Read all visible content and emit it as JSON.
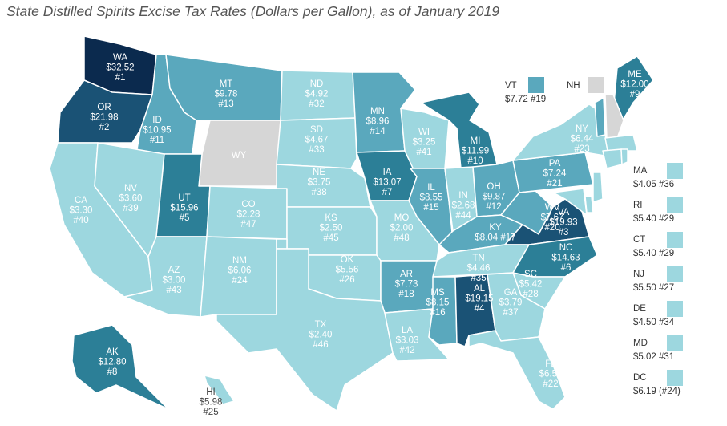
{
  "title": "State Distilled Spirits Excise Tax Rates (Dollars per Gallon), as of January 2019",
  "colors": {
    "tier1": "#0b2a4e",
    "tier2": "#1a5275",
    "tier3": "#2c7f97",
    "tier4": "#5aa8bd",
    "tier5": "#9dd7df",
    "none": "#d6d6d6",
    "border": "#ffffff"
  },
  "states": [
    {
      "code": "WA",
      "value": "$32.52",
      "rank": "#1",
      "tier": "tier1"
    },
    {
      "code": "OR",
      "value": "$21.98",
      "rank": "#2",
      "tier": "tier2"
    },
    {
      "code": "ID",
      "value": "$10.95",
      "rank": "#11",
      "tier": "tier4"
    },
    {
      "code": "MT",
      "value": "$9.78",
      "rank": "#13",
      "tier": "tier4"
    },
    {
      "code": "WY",
      "value": "",
      "rank": "",
      "tier": "none"
    },
    {
      "code": "ND",
      "value": "$4.92",
      "rank": "#32",
      "tier": "tier5"
    },
    {
      "code": "SD",
      "value": "$4.67",
      "rank": "#33",
      "tier": "tier5"
    },
    {
      "code": "MN",
      "value": "$8.96",
      "rank": "#14",
      "tier": "tier4"
    },
    {
      "code": "WI",
      "value": "$3.25",
      "rank": "#41",
      "tier": "tier5"
    },
    {
      "code": "MI",
      "value": "$11.99",
      "rank": "#10",
      "tier": "tier3"
    },
    {
      "code": "NV",
      "value": "$3.60",
      "rank": "#39",
      "tier": "tier5"
    },
    {
      "code": "CA",
      "value": "$3.30",
      "rank": "#40",
      "tier": "tier5"
    },
    {
      "code": "UT",
      "value": "$15.96",
      "rank": "#5",
      "tier": "tier3"
    },
    {
      "code": "CO",
      "value": "$2.28",
      "rank": "#47",
      "tier": "tier5"
    },
    {
      "code": "NE",
      "value": "$3.75",
      "rank": "#38",
      "tier": "tier5"
    },
    {
      "code": "IA",
      "value": "$13.07",
      "rank": "#7",
      "tier": "tier3"
    },
    {
      "code": "IL",
      "value": "$8.55",
      "rank": "#15",
      "tier": "tier4"
    },
    {
      "code": "IN",
      "value": "$2.68",
      "rank": "#44",
      "tier": "tier5"
    },
    {
      "code": "OH",
      "value": "$9.87",
      "rank": "#12",
      "tier": "tier4"
    },
    {
      "code": "PA",
      "value": "$7.24",
      "rank": "#21",
      "tier": "tier4"
    },
    {
      "code": "NY",
      "value": "$6.44",
      "rank": "#23",
      "tier": "tier5"
    },
    {
      "code": "KS",
      "value": "$2.50",
      "rank": "#45",
      "tier": "tier5"
    },
    {
      "code": "MO",
      "value": "$2.00",
      "rank": "#48",
      "tier": "tier5"
    },
    {
      "code": "KY",
      "value": "$8.04",
      "rank": "#17",
      "tier": "tier4"
    },
    {
      "code": "WV",
      "value": "$7.67",
      "rank": "#20",
      "tier": "tier4"
    },
    {
      "code": "VA",
      "value": "$19.93",
      "rank": "#3",
      "tier": "tier2"
    },
    {
      "code": "AZ",
      "value": "$3.00",
      "rank": "#43",
      "tier": "tier5"
    },
    {
      "code": "NM",
      "value": "$6.06",
      "rank": "#24",
      "tier": "tier5"
    },
    {
      "code": "OK",
      "value": "$5.56",
      "rank": "#26",
      "tier": "tier5"
    },
    {
      "code": "AR",
      "value": "$7.73",
      "rank": "#18",
      "tier": "tier4"
    },
    {
      "code": "TN",
      "value": "$4.46",
      "rank": "#35",
      "tier": "tier5"
    },
    {
      "code": "NC",
      "value": "$14.63",
      "rank": "#6",
      "tier": "tier3"
    },
    {
      "code": "SC",
      "value": "$5.42",
      "rank": "#28",
      "tier": "tier5"
    },
    {
      "code": "TX",
      "value": "$2.40",
      "rank": "#46",
      "tier": "tier5"
    },
    {
      "code": "LA",
      "value": "$3.03",
      "rank": "#42",
      "tier": "tier5"
    },
    {
      "code": "MS",
      "value": "$8.15",
      "rank": "#16",
      "tier": "tier4"
    },
    {
      "code": "AL",
      "value": "$19.15",
      "rank": "#4",
      "tier": "tier2"
    },
    {
      "code": "GA",
      "value": "$3.79",
      "rank": "#37",
      "tier": "tier5"
    },
    {
      "code": "FL",
      "value": "$6.50",
      "rank": "#22",
      "tier": "tier5"
    },
    {
      "code": "AK",
      "value": "$12.80",
      "rank": "#8",
      "tier": "tier3"
    },
    {
      "code": "HI",
      "value": "$5.98",
      "rank": "#25",
      "tier": "tier5"
    },
    {
      "code": "ME",
      "value": "$12.00",
      "rank": "#9",
      "tier": "tier3"
    },
    {
      "code": "VT",
      "value": "$7.72",
      "rank": "#19",
      "tier": "tier4"
    },
    {
      "code": "NH",
      "value": "",
      "rank": "",
      "tier": "none"
    }
  ],
  "vt_label": {
    "code": "VT",
    "text": "$7.72 #19"
  },
  "nh_label": {
    "code": "NH"
  },
  "kentucky_line": "$8.04 #17",
  "legend": [
    {
      "code": "MA",
      "text": "$4.05 #36",
      "tier": "tier5"
    },
    {
      "code": "RI",
      "text": "$5.40 #29",
      "tier": "tier5"
    },
    {
      "code": "CT",
      "text": "$5.40 #29",
      "tier": "tier5"
    },
    {
      "code": "NJ",
      "text": "$5.50 #27",
      "tier": "tier5"
    },
    {
      "code": "DE",
      "text": "$4.50 #34",
      "tier": "tier5"
    },
    {
      "code": "MD",
      "text": "$5.02 #31",
      "tier": "tier5"
    },
    {
      "code": "DC",
      "text": "$6.19 (#24)",
      "tier": "tier5"
    }
  ]
}
